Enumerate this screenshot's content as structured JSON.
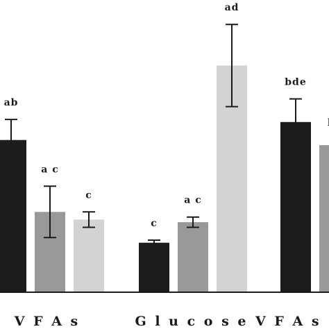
{
  "chart_data": {
    "type": "bar",
    "categories": [
      "VFAs",
      "Glucose",
      "VFAs +"
    ],
    "category_label_display": [
      "V F A s",
      "G l u c o s e",
      "V F A s  +"
    ],
    "ylim": [
      0,
      100
    ],
    "grid": false,
    "series": [
      {
        "color": "#1c1c1c",
        "values": [
          59,
          19,
          66
        ],
        "errors": [
          8,
          1,
          9
        ],
        "labels": [
          "ab",
          "c",
          "bde"
        ]
      },
      {
        "color": "#999999",
        "values": [
          31,
          27,
          null
        ],
        "errors": [
          10,
          2,
          null
        ],
        "labels": [
          "a c",
          "a c",
          ""
        ]
      },
      {
        "color": "#d3d3d3",
        "values": [
          28,
          88,
          null
        ],
        "errors": [
          3,
          16,
          null
        ],
        "labels": [
          "c",
          "ad",
          ""
        ]
      }
    ],
    "partial_visible": {
      "series_index": 1,
      "category_index": 2,
      "value": 57,
      "label_fragment": "b"
    }
  }
}
